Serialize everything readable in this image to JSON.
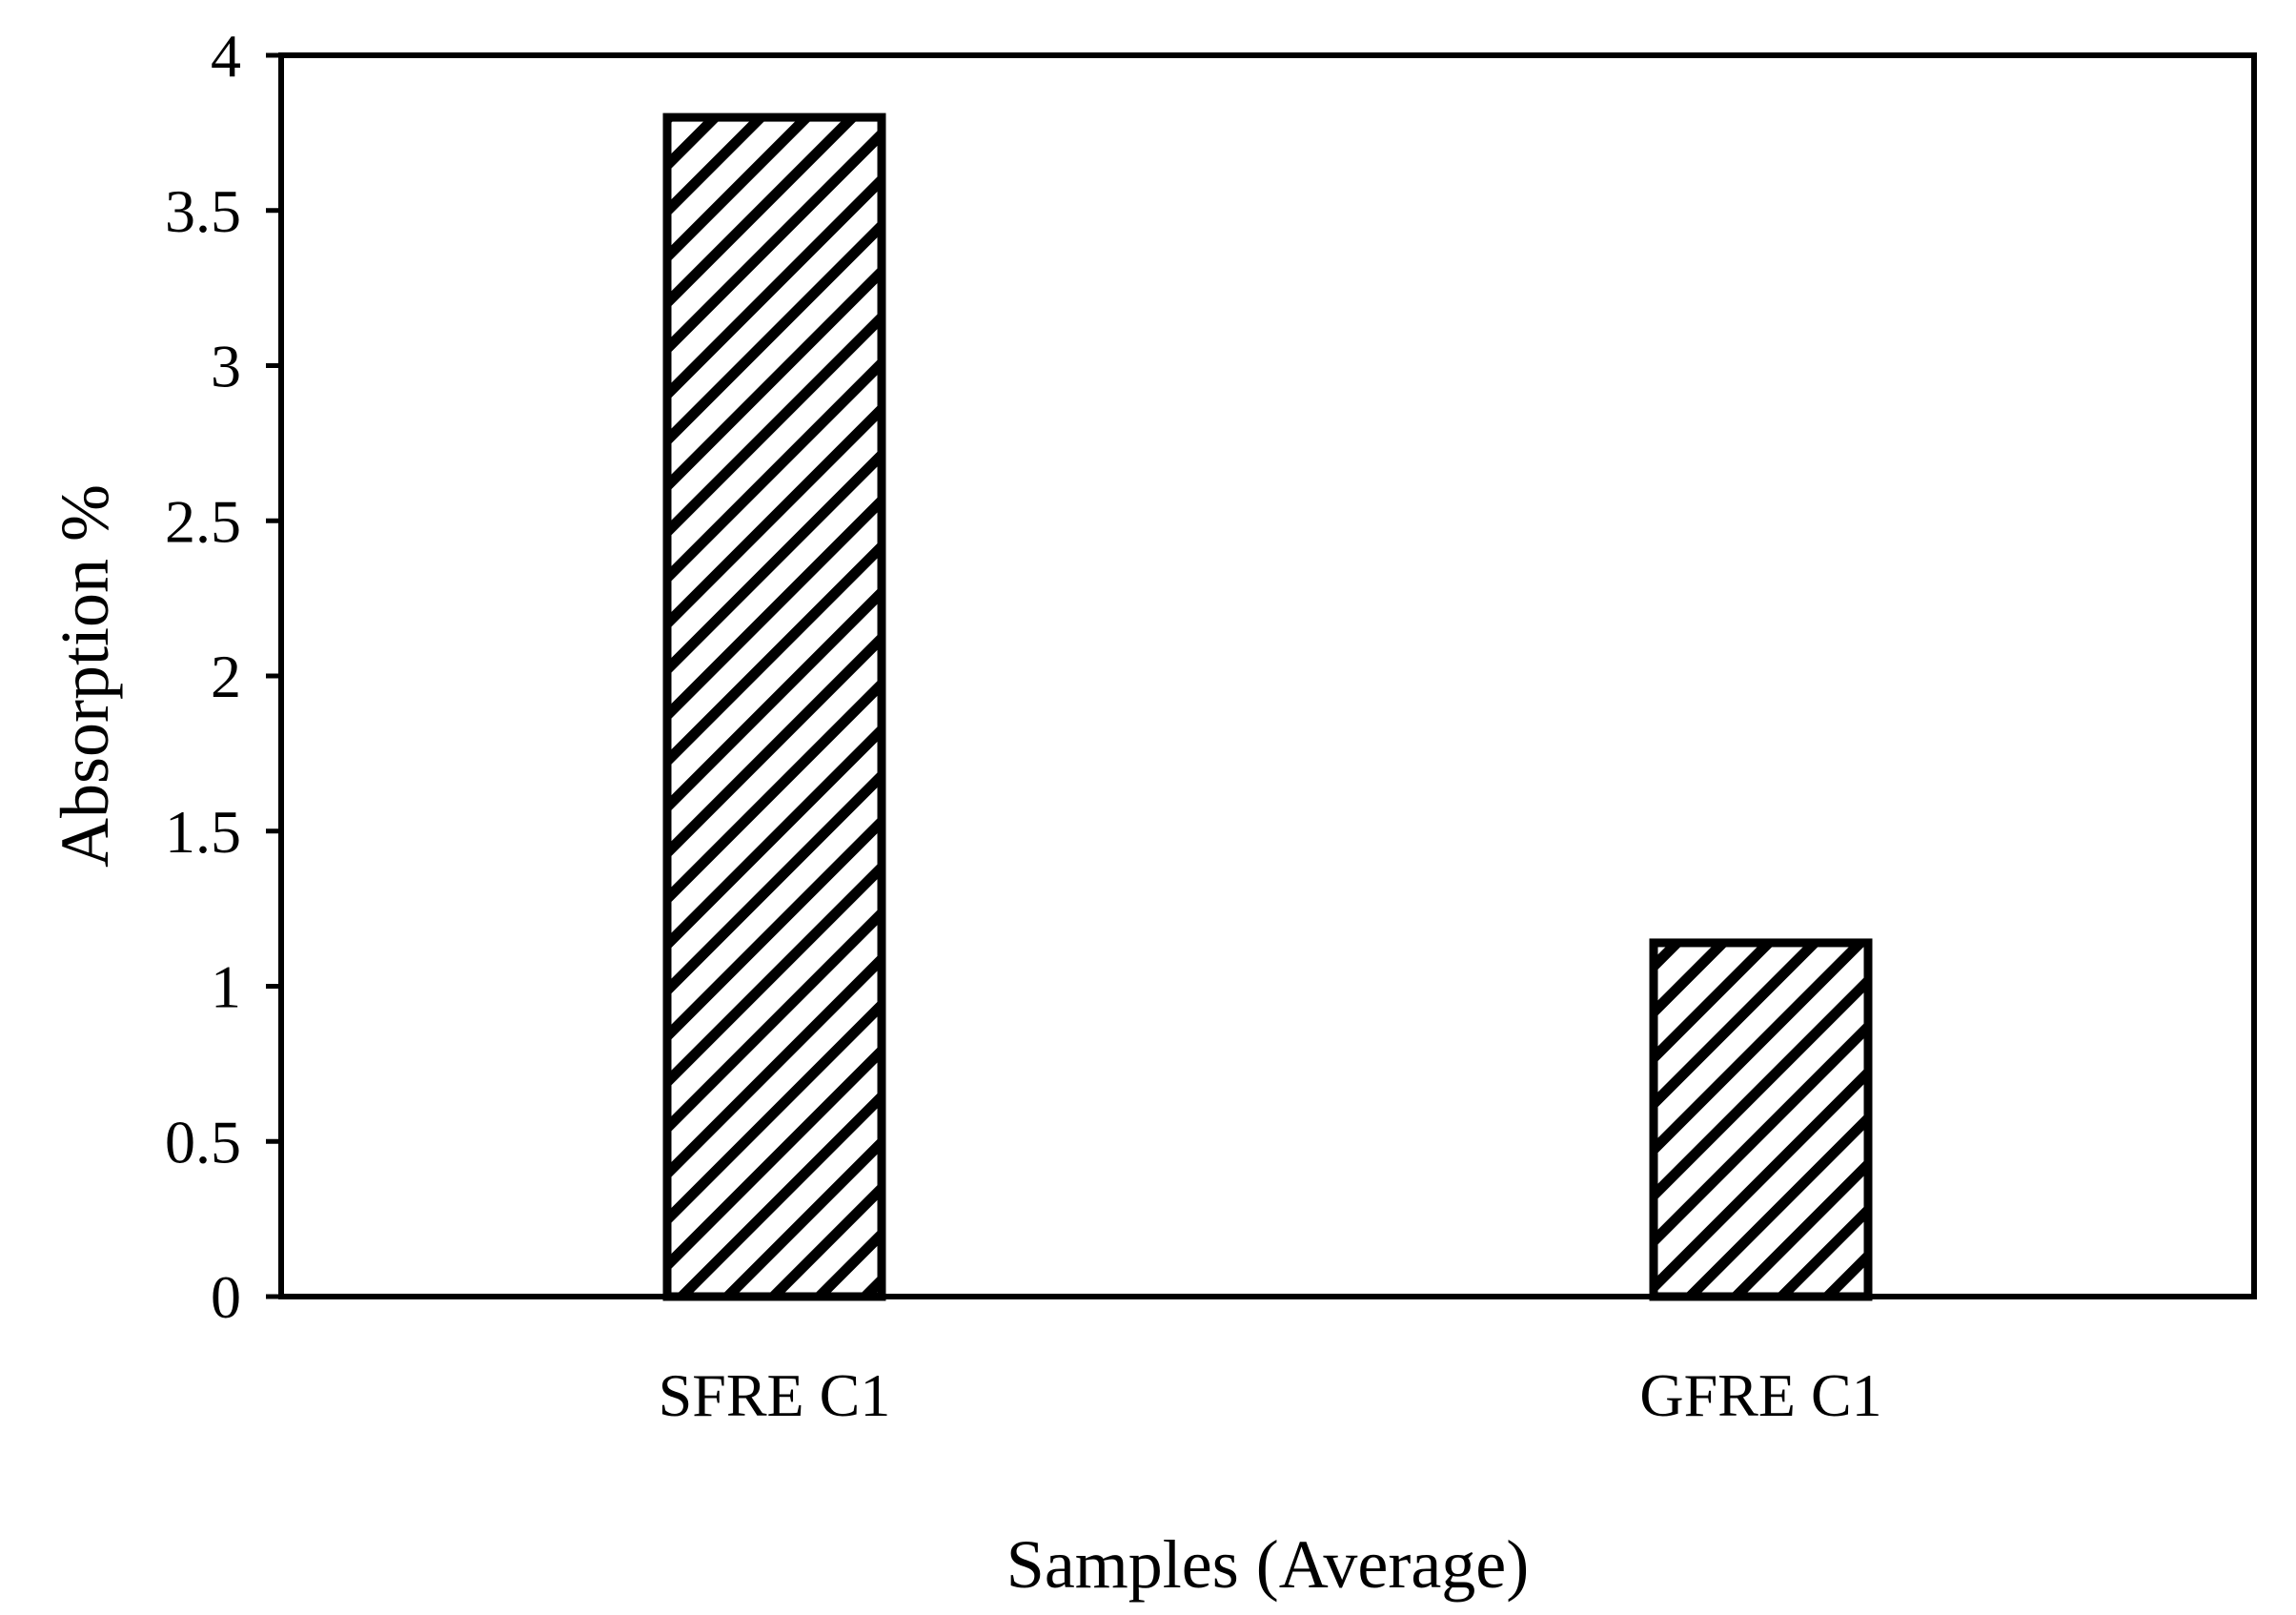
{
  "chart_data": {
    "type": "bar",
    "title": "",
    "xlabel": "Samples (Average)",
    "ylabel": "Absorption %",
    "categories": [
      "SFRE C1",
      "GFRE C1"
    ],
    "values": [
      3.8,
      1.14
    ],
    "ylim": [
      0,
      4
    ],
    "yticks": [
      "0",
      "0.5",
      "1",
      "1.5",
      "2",
      "2.5",
      "3",
      "3.5",
      "4"
    ],
    "grid": false,
    "legend": "none",
    "bar_fill": "diagonal-hatch",
    "colors": {
      "bar_stroke": "#000000",
      "bar_fill": "#ffffff",
      "hatch": "#000000",
      "axis": "#000000"
    }
  }
}
